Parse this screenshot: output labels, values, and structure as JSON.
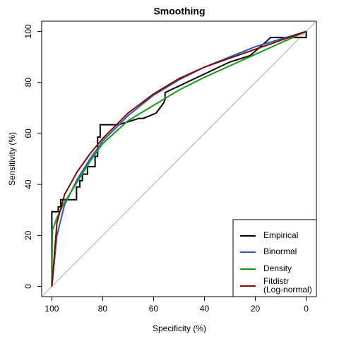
{
  "chart_data": {
    "type": "line",
    "title": "Smoothing",
    "x_label": "Specificity (%)",
    "y_label": "Sensitivity (%)",
    "xlim": [
      104,
      -4
    ],
    "ylim": [
      -4,
      104
    ],
    "xticks": [
      100,
      80,
      60,
      40,
      20,
      0
    ],
    "yticks": [
      0,
      20,
      40,
      60,
      80,
      100
    ],
    "diagonal": true,
    "legend": "bottom-right",
    "series": [
      {
        "name": "Empirical",
        "color": "#000000",
        "step": true,
        "x": [
          100,
          100,
          97.5,
          97.5,
          96.5,
          96.5,
          90.3,
          90.3,
          89,
          89,
          88,
          88,
          86,
          86,
          83,
          83,
          82,
          82,
          81,
          81,
          73.8,
          65.7,
          64,
          59,
          56,
          55.5,
          55.5,
          30,
          22,
          18,
          14,
          0,
          0
        ],
        "values": [
          0,
          29.3,
          29.3,
          31.2,
          31.2,
          34,
          34,
          39,
          39,
          41.5,
          41.5,
          44,
          44,
          47,
          47,
          51,
          51,
          58.5,
          58.5,
          63.4,
          63.4,
          65.9,
          65.9,
          68,
          72,
          73.4,
          76,
          88,
          90.5,
          94,
          97.6,
          97.6,
          100
        ]
      },
      {
        "name": "Binormal",
        "color": "#1f5fbf",
        "x": [
          100,
          98,
          95,
          90,
          85,
          80,
          70,
          60,
          50,
          40,
          30,
          20,
          10,
          0
        ],
        "values": [
          0,
          20,
          32,
          42,
          50,
          57,
          67,
          75,
          81,
          86,
          90,
          94,
          97,
          100
        ]
      },
      {
        "name": "Density",
        "color": "#1a9a1a",
        "x": [
          100,
          99.8,
          98,
          95,
          90,
          85,
          80,
          70,
          60,
          50,
          40,
          30,
          20,
          10,
          0
        ],
        "values": [
          0,
          22,
          27,
          33,
          41,
          49,
          56,
          65,
          71,
          77,
          82,
          86.5,
          91,
          95.5,
          100
        ]
      },
      {
        "name": "Fitdistr\n(Log-normal)",
        "color": "#8b0000",
        "x": [
          100,
          98,
          95,
          90,
          85,
          80,
          70,
          60,
          50,
          40,
          30,
          20,
          10,
          0
        ],
        "values": [
          0,
          25,
          36,
          45,
          52,
          58,
          68,
          75.5,
          81.5,
          86,
          89.5,
          93,
          96.5,
          100
        ]
      }
    ]
  }
}
